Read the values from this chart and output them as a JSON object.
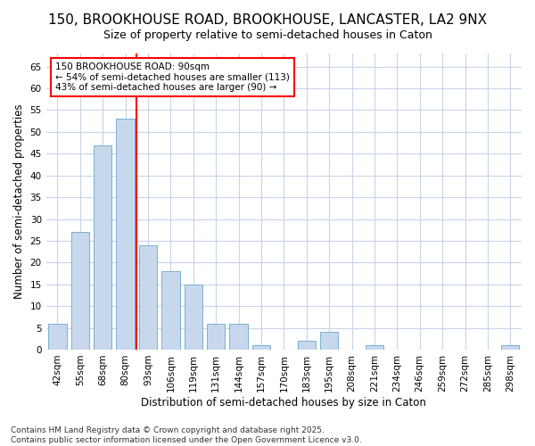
{
  "title": "150, BROOKHOUSE ROAD, BROOKHOUSE, LANCASTER, LA2 9NX",
  "subtitle": "Size of property relative to semi-detached houses in Caton",
  "xlabel": "Distribution of semi-detached houses by size in Caton",
  "ylabel": "Number of semi-detached properties",
  "categories": [
    "42sqm",
    "55sqm",
    "68sqm",
    "80sqm",
    "93sqm",
    "106sqm",
    "119sqm",
    "131sqm",
    "144sqm",
    "157sqm",
    "170sqm",
    "183sqm",
    "195sqm",
    "208sqm",
    "221sqm",
    "234sqm",
    "246sqm",
    "259sqm",
    "272sqm",
    "285sqm",
    "298sqm"
  ],
  "values": [
    6,
    27,
    47,
    53,
    24,
    18,
    15,
    6,
    6,
    1,
    0,
    2,
    4,
    0,
    1,
    0,
    0,
    0,
    0,
    0,
    1
  ],
  "bar_color": "#c8d8ec",
  "bar_edge_color": "#7bafd4",
  "grid_color": "#c8d4e8",
  "vline_color": "red",
  "vline_x_index": 4,
  "annotation_text": "150 BROOKHOUSE ROAD: 90sqm\n← 54% of semi-detached houses are smaller (113)\n43% of semi-detached houses are larger (90) →",
  "annotation_box_facecolor": "white",
  "annotation_box_edgecolor": "red",
  "ylim": [
    0,
    68
  ],
  "yticks": [
    0,
    5,
    10,
    15,
    20,
    25,
    30,
    35,
    40,
    45,
    50,
    55,
    60,
    65
  ],
  "footer_line1": "Contains HM Land Registry data © Crown copyright and database right 2025.",
  "footer_line2": "Contains public sector information licensed under the Open Government Licence v3.0.",
  "bg_color": "#ffffff",
  "plot_bg_color": "#ffffff",
  "title_fontsize": 11,
  "subtitle_fontsize": 9,
  "axis_label_fontsize": 8.5,
  "tick_fontsize": 7.5,
  "annotation_fontsize": 7.5,
  "footer_fontsize": 6.5
}
